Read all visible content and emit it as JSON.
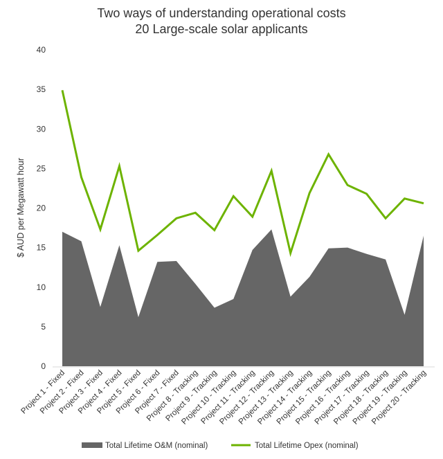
{
  "chart_data": {
    "type": "area+line",
    "title": "Two ways of understanding operational costs",
    "subtitle": "20 Large-scale solar applicants",
    "xlabel": "",
    "ylabel": "$ AUD per Megawatt hour",
    "ylim": [
      0,
      40
    ],
    "yticks": [
      "0",
      "5",
      "10",
      "15",
      "20",
      "25",
      "30",
      "35",
      "40"
    ],
    "grid": false,
    "legend_position": "bottom",
    "categories": [
      "Project 1 - Fixed",
      "Project 2 - Fixed",
      "Project 3 - Fixed",
      "Project 4 - Fixed",
      "Project 5 - Fixed",
      "Project 6 - Fixed",
      "Project 7 - Fixed",
      "Project 8 - Tracking",
      "Project 9 - Tracking",
      "Project 10 - Tracking",
      "Project 11 - Tracking",
      "Project 12 - Tracking",
      "Project 13 - Tracking",
      "Project 14 - Tracking",
      "Project 15 - Tracking",
      "Project 16 - Tracking",
      "Project 17 - Tracking",
      "Project 18 - Tracking",
      "Project 19 - Tracking",
      "Project 20 - Tracking"
    ],
    "series": [
      {
        "name": "Total Lifetime O&M (nominal)",
        "type": "area",
        "color": "#666666",
        "values": [
          17.0,
          15.8,
          7.5,
          15.3,
          6.2,
          13.2,
          13.3,
          10.4,
          7.4,
          8.5,
          14.7,
          17.3,
          8.8,
          11.3,
          14.9,
          15.0,
          14.2,
          13.5,
          6.5,
          16.5
        ]
      },
      {
        "name": "Total Lifetime Opex (nominal)",
        "type": "line",
        "color": "#6db300",
        "values": [
          34.9,
          23.9,
          17.3,
          25.3,
          14.6,
          16.6,
          18.7,
          19.4,
          17.2,
          21.5,
          18.9,
          24.7,
          14.3,
          21.9,
          26.8,
          22.9,
          21.8,
          18.7,
          21.2,
          20.6
        ]
      }
    ]
  }
}
